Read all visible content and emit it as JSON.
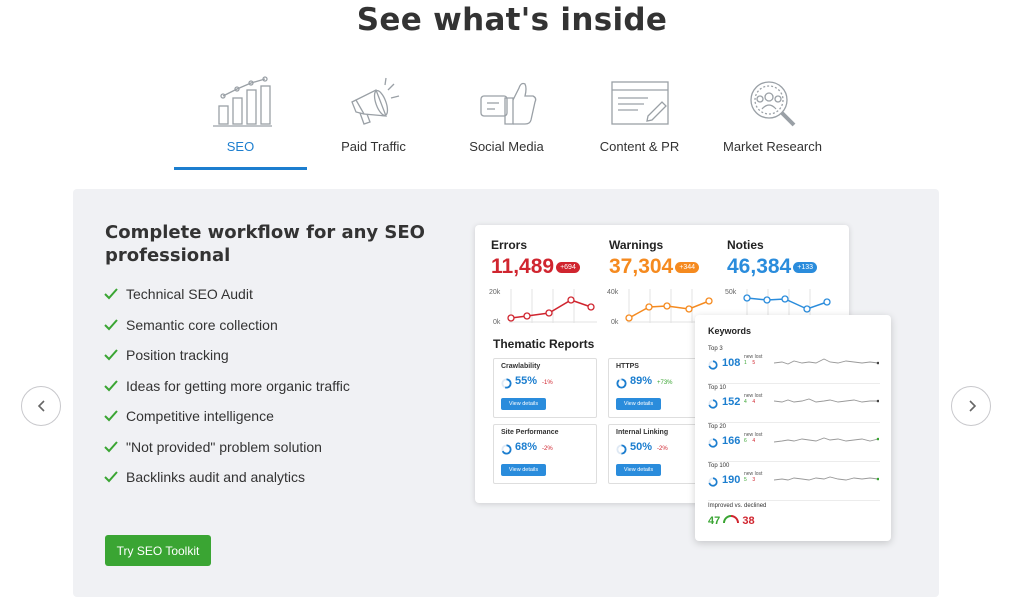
{
  "page": {
    "title": "See what's inside"
  },
  "tabs": [
    {
      "label": "SEO",
      "icon": "seo-chart-icon",
      "active": true
    },
    {
      "label": "Paid Traffic",
      "icon": "megaphone-icon",
      "active": false
    },
    {
      "label": "Social Media",
      "icon": "thumbs-up-icon",
      "active": false
    },
    {
      "label": "Content & PR",
      "icon": "document-edit-icon",
      "active": false
    },
    {
      "label": "Market Research",
      "icon": "magnifier-people-icon",
      "active": false
    }
  ],
  "panel": {
    "headline": "Complete workflow for any SEO professional",
    "features": [
      "Technical SEO Audit",
      "Semantic core collection",
      "Position tracking",
      "Ideas for getting more organic traffic",
      "Competitive intelligence",
      "\"Not provided\" problem solution",
      "Backlinks audit and analytics"
    ],
    "cta": "Try SEO Toolkit"
  },
  "dashboard": {
    "metrics": [
      {
        "label": "Errors",
        "value": "11,489",
        "badge": "+694",
        "color": "#d0252f",
        "ytop": "20k",
        "ybottom": "0k"
      },
      {
        "label": "Warnings",
        "value": "37,304",
        "badge": "+344",
        "color": "#f58a1f",
        "ytop": "40k",
        "ybottom": "0k"
      },
      {
        "label": "Noties",
        "value": "46,384",
        "badge": "+133",
        "color": "#2a8cdc",
        "ytop": "50k",
        "ybottom": ""
      }
    ],
    "thematic_title": "Thematic Reports",
    "reports": [
      {
        "title": "Crawlability",
        "percent": "55%",
        "delta": "-1%",
        "delta_color": "#d0252f",
        "button": "View details"
      },
      {
        "title": "HTTPS",
        "percent": "89%",
        "delta": "+73%",
        "delta_color": "#3aa533",
        "button": "View details"
      },
      {
        "title": "Site Performance",
        "percent": "68%",
        "delta": "-2%",
        "delta_color": "#d0252f",
        "button": "View details"
      },
      {
        "title": "Internal Linking",
        "percent": "50%",
        "delta": "-2%",
        "delta_color": "#d0252f",
        "button": "View details"
      }
    ]
  },
  "keywords": {
    "title": "Keywords",
    "rows": [
      {
        "label": "Top 3",
        "value": "108",
        "new_label": "new",
        "new": "1",
        "lost_label": "lost",
        "lost": "5"
      },
      {
        "label": "Top 10",
        "value": "152",
        "new_label": "new",
        "new": "4",
        "lost_label": "lost",
        "lost": "4"
      },
      {
        "label": "Top 20",
        "value": "166",
        "new_label": "new",
        "new": "6",
        "lost_label": "lost",
        "lost": "4"
      },
      {
        "label": "Top 100",
        "value": "190",
        "new_label": "new",
        "new": "5",
        "lost_label": "lost",
        "lost": "3"
      }
    ],
    "improved_label": "Improved vs. declined",
    "improved": "47",
    "declined": "38"
  },
  "colors": {
    "accent": "#1c7ecf",
    "cta": "#3aa533",
    "error": "#d0252f",
    "warning": "#f58a1f",
    "notice": "#2a8cdc",
    "panel_bg": "#f0f1f4"
  }
}
